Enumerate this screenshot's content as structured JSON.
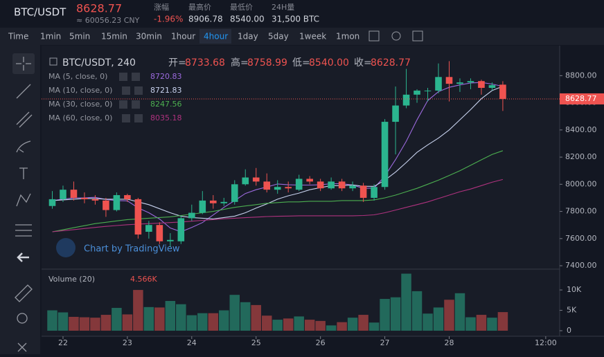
{
  "header": {
    "pair": "BTC/USDT",
    "price": "8628.77",
    "cny": "≈ 60056.23 CNY",
    "stats": [
      {
        "label": "涨幅",
        "value": "-1.96%"
      },
      {
        "label": "最高价",
        "value": "8906.78"
      },
      {
        "label": "最低价",
        "value": "8540.00"
      },
      {
        "label": "24H量",
        "value": "31,500 BTC"
      }
    ]
  },
  "toolbar": {
    "intervals": [
      "Time",
      "1min",
      "5min",
      "15min",
      "30min",
      "1hour",
      "4hour",
      "1day",
      "5day",
      "1week",
      "1mon"
    ],
    "active": "4hour"
  },
  "chart_data": {
    "type": "candlestick",
    "title": "BTC/USDT, 240",
    "ohlc_legend": [
      {
        "label": "开=",
        "value": "8733.68"
      },
      {
        "label": "高=",
        "value": "8758.99"
      },
      {
        "label": "低=",
        "value": "8540.00"
      },
      {
        "label": "收=",
        "value": "8628.77"
      }
    ],
    "up_color": "#2bb58f",
    "down_color": "#ef5350",
    "x": [
      0,
      1,
      2,
      3,
      4,
      5,
      6,
      7,
      8,
      9,
      10,
      11,
      12,
      13,
      14,
      15,
      16,
      17,
      18,
      19,
      20,
      21,
      22,
      23,
      24,
      25,
      26,
      27,
      28,
      29,
      30,
      31,
      32,
      33,
      34,
      35,
      36,
      37,
      38,
      39,
      40,
      41,
      42
    ],
    "open": [
      7840,
      7890,
      7960,
      7900,
      7890,
      7880,
      7810,
      7920,
      7890,
      7650,
      7700,
      7580,
      7580,
      7750,
      7790,
      7880,
      7860,
      7870,
      8000,
      8050,
      8020,
      7960,
      7980,
      7960,
      8040,
      8020,
      7970,
      8020,
      7970,
      7990,
      7900,
      7980,
      8460,
      8580,
      8660,
      8690,
      8690,
      8790,
      8740,
      8750,
      8760,
      8710,
      8733.68
    ],
    "high": [
      7950,
      7990,
      8020,
      7940,
      7920,
      7900,
      7940,
      7930,
      7900,
      7730,
      7720,
      7640,
      7770,
      7850,
      7950,
      7920,
      7900,
      8030,
      8110,
      8120,
      8080,
      8030,
      8020,
      8070,
      8060,
      8040,
      8050,
      8040,
      8020,
      8010,
      8000,
      8480,
      8720,
      8850,
      8700,
      8710,
      8890,
      8906.78,
      8780,
      8780,
      8770,
      8750,
      8758.99
    ],
    "low": [
      7820,
      7870,
      7880,
      7860,
      7850,
      7760,
      7800,
      7870,
      7600,
      7600,
      7560,
      7540,
      7560,
      7730,
      7780,
      7820,
      7840,
      7850,
      7990,
      7990,
      7940,
      7930,
      7940,
      7950,
      8000,
      7950,
      7960,
      7950,
      7950,
      7870,
      7880,
      7960,
      8220,
      8560,
      8600,
      8610,
      8670,
      8610,
      8680,
      8700,
      8660,
      8690,
      8540
    ],
    "close": [
      7890,
      7960,
      7900,
      7890,
      7880,
      7810,
      7920,
      7890,
      7630,
      7700,
      7580,
      7590,
      7750,
      7790,
      7880,
      7860,
      7870,
      8000,
      8050,
      8020,
      7960,
      7980,
      7970,
      8040,
      8020,
      7970,
      8020,
      7970,
      7990,
      7900,
      7980,
      8460,
      8580,
      8660,
      8690,
      8690,
      8790,
      8740,
      8750,
      8760,
      8710,
      8730,
      8628.77
    ],
    "series": [
      {
        "name": "MA (5, close, 0)",
        "color": "#9c6ade",
        "values": [
          7880,
          7890,
          7900,
          7900,
          7904,
          7888,
          7880,
          7878,
          7826,
          7790,
          7744,
          7678,
          7650,
          7682,
          7718,
          7774,
          7830,
          7880,
          7932,
          7960,
          7980,
          8002,
          7996,
          7994,
          7994,
          7996,
          8004,
          8004,
          7994,
          7970,
          7972,
          8060,
          8182,
          8316,
          8474,
          8616,
          8682,
          8714,
          8732,
          8746,
          8750,
          8738,
          8720.83
        ]
      },
      {
        "name": "MA (10, close, 0)",
        "color": "#c8d2ee",
        "values": [
          7880,
          7885,
          7890,
          7895,
          7895,
          7890,
          7890,
          7890,
          7870,
          7850,
          7820,
          7790,
          7765,
          7755,
          7750,
          7745,
          7755,
          7765,
          7790,
          7825,
          7855,
          7890,
          7915,
          7935,
          7960,
          7975,
          7990,
          7990,
          7995,
          7985,
          7985,
          8030,
          8090,
          8160,
          8235,
          8290,
          8340,
          8400,
          8475,
          8550,
          8630,
          8690,
          8721.83
        ]
      },
      {
        "name": "MA (30, close, 0)",
        "color": "#4caf50",
        "values": [
          7650,
          7665,
          7680,
          7695,
          7710,
          7720,
          7730,
          7740,
          7745,
          7750,
          7755,
          7760,
          7770,
          7780,
          7790,
          7800,
          7815,
          7830,
          7840,
          7850,
          7860,
          7865,
          7870,
          7870,
          7875,
          7875,
          7875,
          7880,
          7880,
          7880,
          7885,
          7900,
          7920,
          7945,
          7970,
          8000,
          8030,
          8065,
          8100,
          8140,
          8180,
          8220,
          8247.56
        ]
      },
      {
        "name": "MA (60, close, 0)",
        "color": "#b0327f",
        "values": [
          7650,
          7658,
          7666,
          7674,
          7682,
          7690,
          7696,
          7702,
          7706,
          7710,
          7714,
          7718,
          7722,
          7728,
          7734,
          7740,
          7746,
          7750,
          7754,
          7758,
          7762,
          7764,
          7766,
          7768,
          7768,
          7768,
          7768,
          7768,
          7768,
          7770,
          7775,
          7790,
          7810,
          7830,
          7850,
          7870,
          7895,
          7920,
          7945,
          7965,
          7990,
          8015,
          8035.18
        ]
      }
    ],
    "xlim": [
      -1,
      47.3
    ],
    "xticks": [
      {
        "value": 1,
        "label": "22"
      },
      {
        "value": 7,
        "label": "23"
      },
      {
        "value": 13,
        "label": "24"
      },
      {
        "value": 19,
        "label": "25"
      },
      {
        "value": 25,
        "label": "26"
      },
      {
        "value": 31,
        "label": "27"
      },
      {
        "value": 37,
        "label": "28"
      },
      {
        "value": 46,
        "label": "12:00"
      }
    ],
    "ylim": [
      7380,
      8975
    ],
    "yticks": [
      {
        "value": 7400,
        "label": "7400.00"
      },
      {
        "value": 7600,
        "label": "7600.00"
      },
      {
        "value": 7800,
        "label": "7800.00"
      },
      {
        "value": 8000,
        "label": "8000.00"
      },
      {
        "value": 8200,
        "label": "8200.00"
      },
      {
        "value": 8400,
        "label": "8400.00"
      },
      {
        "value": 8600,
        "label": "8600.00"
      },
      {
        "value": 8800,
        "label": "8800.00"
      }
    ],
    "grid": false,
    "volume": {
      "name": "Volume (20)",
      "last_label": "4.566K",
      "values": [
        5000,
        4500,
        3400,
        3300,
        3200,
        3900,
        5600,
        4000,
        10000,
        5800,
        5700,
        7300,
        6500,
        3800,
        4300,
        4300,
        5000,
        8800,
        7000,
        6300,
        3700,
        2700,
        3000,
        3500,
        2700,
        2400,
        1300,
        2100,
        3200,
        3900,
        2000,
        7800,
        8200,
        14000,
        9700,
        4200,
        5700,
        7600,
        9200,
        3300,
        3900,
        3200,
        4566
      ],
      "ylim": [
        0,
        14600
      ],
      "yticks": [
        0,
        {
          "value": 5000,
          "label": "5K"
        },
        {
          "value": 10000,
          "label": "10K"
        }
      ]
    },
    "watermark": "Chart by TradingView"
  }
}
